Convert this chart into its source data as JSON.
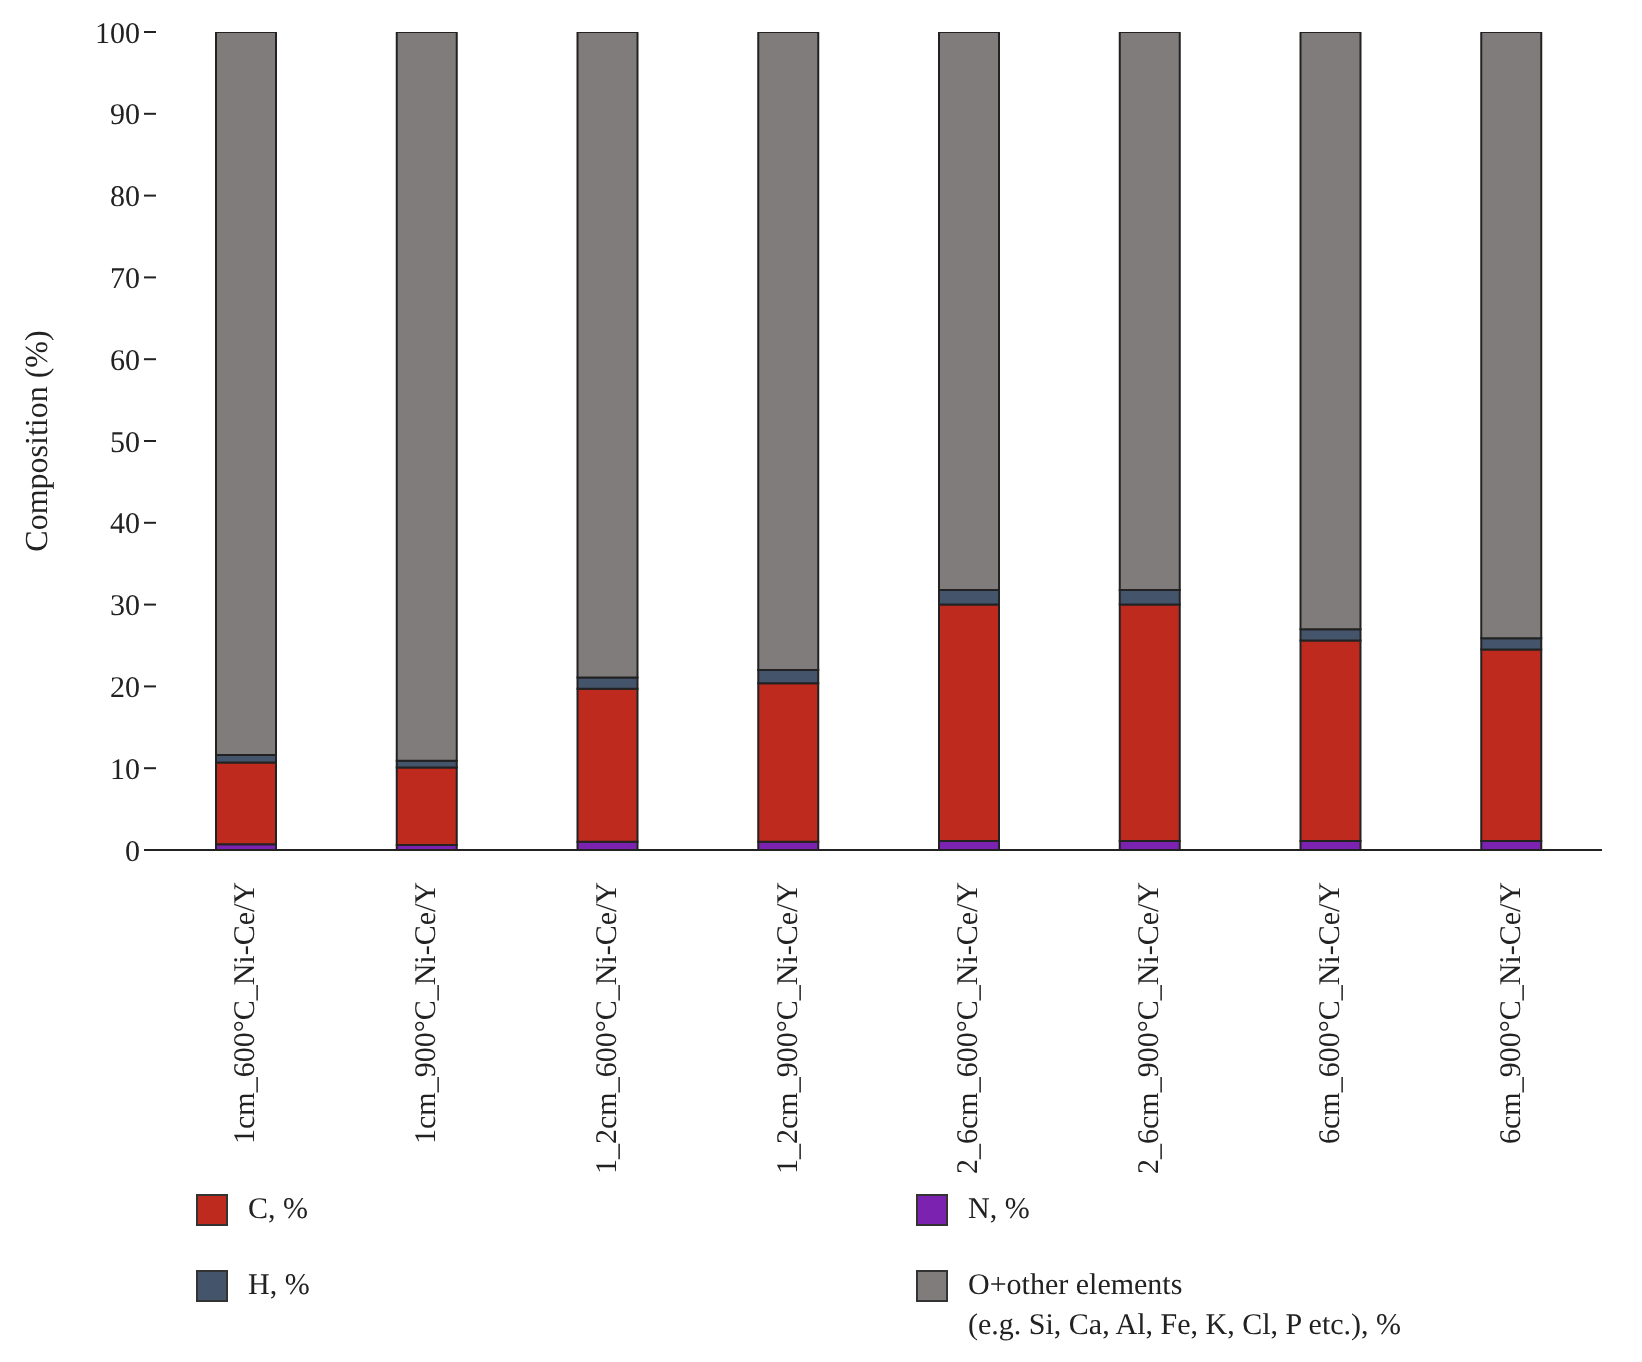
{
  "chart_data": {
    "type": "bar",
    "stacked": true,
    "ylabel": "Composition (%)",
    "categories": [
      "1cm_600°C_Ni-Ce/Y",
      "1cm_900°C_Ni-Ce/Y",
      "1_2cm_600°C_Ni-Ce/Y",
      "1_2cm_900°C_Ni-Ce/Y",
      "2_6cm_600°C_Ni-Ce/Y",
      "2_6cm_900°C_Ni-Ce/Y",
      "6cm_600°C_Ni-Ce/Y",
      "6cm_900°C_Ni-Ce/Y"
    ],
    "series": [
      {
        "name": "N, %",
        "color": "#7b22b0",
        "values": [
          0.7,
          0.6,
          1.0,
          1.0,
          1.1,
          1.1,
          1.1,
          1.1
        ]
      },
      {
        "name": "C, %",
        "color": "#be2a1e",
        "values": [
          10.0,
          9.5,
          18.7,
          19.4,
          28.9,
          28.9,
          24.5,
          23.4
        ]
      },
      {
        "name": "H, %",
        "color": "#44546a",
        "values": [
          0.9,
          0.8,
          1.4,
          1.6,
          1.8,
          1.8,
          1.4,
          1.4
        ]
      },
      {
        "name": "O+other elements\n(e.g. Si, Ca, Al, Fe, K, Cl, P etc.), %",
        "color": "#807c7b",
        "values": [
          88.4,
          89.1,
          78.9,
          78.0,
          68.2,
          68.2,
          73.0,
          74.1
        ]
      }
    ],
    "ylim": [
      0,
      100
    ],
    "yticks": [
      0,
      10,
      20,
      30,
      40,
      50,
      60,
      70,
      80,
      90,
      100
    ],
    "grid": false,
    "legend": "bottom"
  }
}
